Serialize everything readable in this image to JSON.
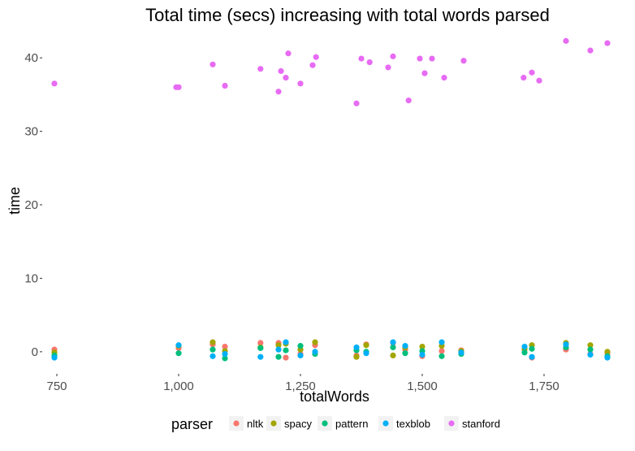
{
  "chart_data": {
    "type": "scatter",
    "title": "Total time (secs) increasing with total words parsed",
    "xlabel": "totalWords",
    "ylabel": "time",
    "xlim": [
      720,
      1900
    ],
    "ylim": [
      -3,
      44
    ],
    "x_ticks": [
      750,
      1000,
      1250,
      1500,
      1750
    ],
    "x_tick_labels": [
      "750",
      "1,000",
      "1,250",
      "1,500",
      "1,750"
    ],
    "y_ticks": [
      0,
      10,
      20,
      30,
      40
    ],
    "y_tick_labels": [
      "0",
      "10",
      "20",
      "30",
      "40"
    ],
    "grid": false,
    "legend": {
      "title": "parser",
      "position": "bottom"
    },
    "series": [
      {
        "name": "nltk",
        "color": "#F8766D",
        "x": [
          745,
          1000,
          1070,
          1095,
          1168,
          1205,
          1220,
          1250,
          1280,
          1365,
          1385,
          1440,
          1465,
          1500,
          1540,
          1580,
          1710,
          1725,
          1795,
          1845,
          1880
        ],
        "y": [
          0.3,
          0.5,
          1.0,
          0.7,
          1.2,
          1.2,
          -0.8,
          -0.3,
          0.9,
          -0.5,
          1.0,
          1.2,
          0.3,
          -0.6,
          0.1,
          0.2,
          0.3,
          -0.8,
          0.3,
          -0.3,
          -0.2
        ]
      },
      {
        "name": "spacy",
        "color": "#A3A500",
        "x": [
          745,
          1000,
          1070,
          1095,
          1168,
          1205,
          1220,
          1250,
          1280,
          1365,
          1385,
          1440,
          1465,
          1500,
          1540,
          1580,
          1710,
          1725,
          1795,
          1845,
          1880
        ],
        "y": [
          -0.1,
          0.8,
          1.3,
          0.1,
          0.6,
          0.9,
          1.1,
          0.3,
          1.3,
          -0.7,
          0.9,
          -0.5,
          0.6,
          0.7,
          0.8,
          0.1,
          0.4,
          0.9,
          1.2,
          0.9,
          0.0
        ]
      },
      {
        "name": "pattern",
        "color": "#00BF7D",
        "x": [
          745,
          1000,
          1070,
          1095,
          1168,
          1205,
          1220,
          1250,
          1280,
          1365,
          1385,
          1440,
          1465,
          1500,
          1540,
          1580,
          1710,
          1725,
          1795,
          1845,
          1880
        ],
        "y": [
          -0.5,
          -0.2,
          0.3,
          -0.9,
          0.5,
          -0.7,
          0.2,
          0.8,
          -0.3,
          0.2,
          0.0,
          0.6,
          -0.2,
          0.1,
          -0.6,
          -0.3,
          -0.1,
          0.4,
          0.6,
          0.3,
          -0.6
        ]
      },
      {
        "name": "texblob",
        "color": "#00B0F6",
        "x": [
          745,
          1000,
          1070,
          1095,
          1168,
          1205,
          1220,
          1250,
          1280,
          1365,
          1385,
          1440,
          1465,
          1500,
          1540,
          1580,
          1710,
          1725,
          1795,
          1845,
          1880
        ],
        "y": [
          -0.8,
          0.9,
          -0.6,
          -0.3,
          -0.7,
          0.3,
          1.3,
          -0.5,
          0.0,
          0.6,
          -0.2,
          1.3,
          0.8,
          -0.4,
          1.3,
          -0.1,
          0.7,
          -0.7,
          1.0,
          -0.4,
          -0.8
        ]
      },
      {
        "name": "stanford",
        "color": "#E76BF3",
        "x": [
          745,
          995,
          1000,
          1070,
          1095,
          1168,
          1205,
          1210,
          1220,
          1225,
          1250,
          1275,
          1282,
          1365,
          1375,
          1392,
          1430,
          1440,
          1472,
          1495,
          1505,
          1520,
          1545,
          1585,
          1708,
          1725,
          1740,
          1795,
          1845,
          1880
        ],
        "y": [
          36.5,
          36.0,
          36.0,
          39.1,
          36.2,
          38.5,
          35.4,
          38.2,
          37.3,
          40.6,
          36.5,
          39.0,
          40.1,
          33.8,
          39.9,
          39.4,
          38.7,
          40.2,
          34.2,
          39.9,
          37.9,
          39.9,
          37.3,
          39.6,
          37.3,
          38.0,
          36.9,
          42.3,
          41.0,
          42.0
        ]
      }
    ]
  }
}
